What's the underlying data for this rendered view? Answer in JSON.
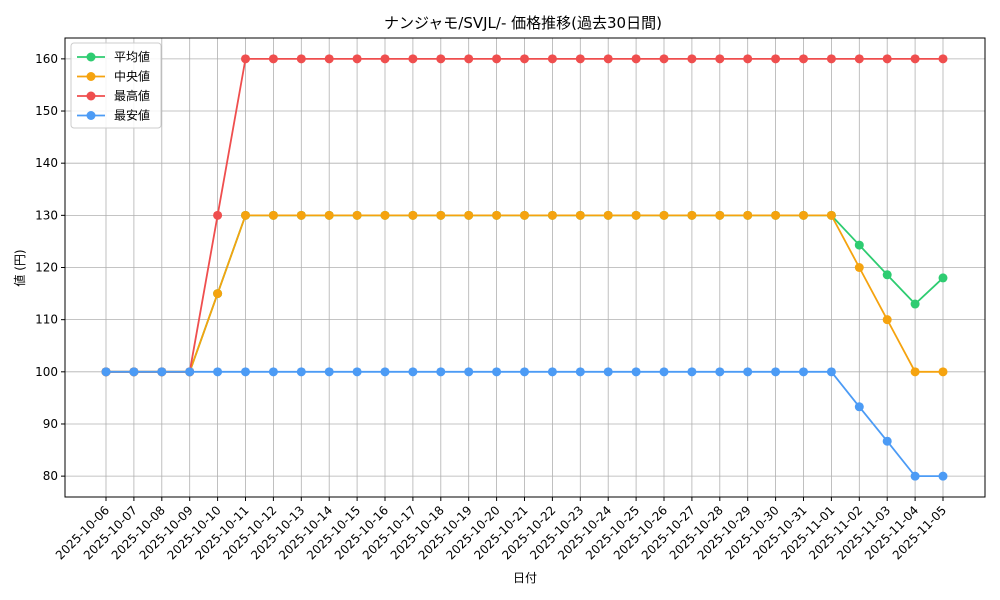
{
  "chart_data": {
    "type": "line",
    "title": "ナンジャモ/SVJL/- 価格推移(過去30日間)",
    "xlabel": "日付",
    "ylabel": "値 (円)",
    "ylim": [
      76,
      164
    ],
    "yticks": [
      80,
      90,
      100,
      110,
      120,
      130,
      140,
      150,
      160
    ],
    "grid": true,
    "legend_position": "top-left",
    "categories": [
      "2025-10-06",
      "2025-10-07",
      "2025-10-08",
      "2025-10-09",
      "2025-10-10",
      "2025-10-11",
      "2025-10-12",
      "2025-10-13",
      "2025-10-14",
      "2025-10-15",
      "2025-10-16",
      "2025-10-17",
      "2025-10-18",
      "2025-10-19",
      "2025-10-20",
      "2025-10-21",
      "2025-10-22",
      "2025-10-23",
      "2025-10-24",
      "2025-10-25",
      "2025-10-26",
      "2025-10-27",
      "2025-10-28",
      "2025-10-29",
      "2025-10-30",
      "2025-10-31",
      "2025-11-01",
      "2025-11-02",
      "2025-11-03",
      "2025-11-04",
      "2025-11-05"
    ],
    "series": [
      {
        "name": "平均値",
        "color": "#2ecc71",
        "values": [
          100,
          100,
          100,
          100,
          115,
          130,
          130,
          130,
          130,
          130,
          130,
          130,
          130,
          130,
          130,
          130,
          130,
          130,
          130,
          130,
          130,
          130,
          130,
          130,
          130,
          130,
          130,
          124.3,
          118.6,
          113,
          118
        ]
      },
      {
        "name": "中央値",
        "color": "#f5a30f",
        "values": [
          100,
          100,
          100,
          100,
          115,
          130,
          130,
          130,
          130,
          130,
          130,
          130,
          130,
          130,
          130,
          130,
          130,
          130,
          130,
          130,
          130,
          130,
          130,
          130,
          130,
          130,
          130,
          120,
          110,
          100,
          100
        ]
      },
      {
        "name": "最高値",
        "color": "#ef4e4e",
        "values": [
          100,
          100,
          100,
          100,
          130,
          160,
          160,
          160,
          160,
          160,
          160,
          160,
          160,
          160,
          160,
          160,
          160,
          160,
          160,
          160,
          160,
          160,
          160,
          160,
          160,
          160,
          160,
          160,
          160,
          160,
          160
        ]
      },
      {
        "name": "最安値",
        "color": "#4c9bf5",
        "values": [
          100,
          100,
          100,
          100,
          100,
          100,
          100,
          100,
          100,
          100,
          100,
          100,
          100,
          100,
          100,
          100,
          100,
          100,
          100,
          100,
          100,
          100,
          100,
          100,
          100,
          100,
          100,
          93.3,
          86.7,
          80,
          80
        ]
      }
    ]
  }
}
